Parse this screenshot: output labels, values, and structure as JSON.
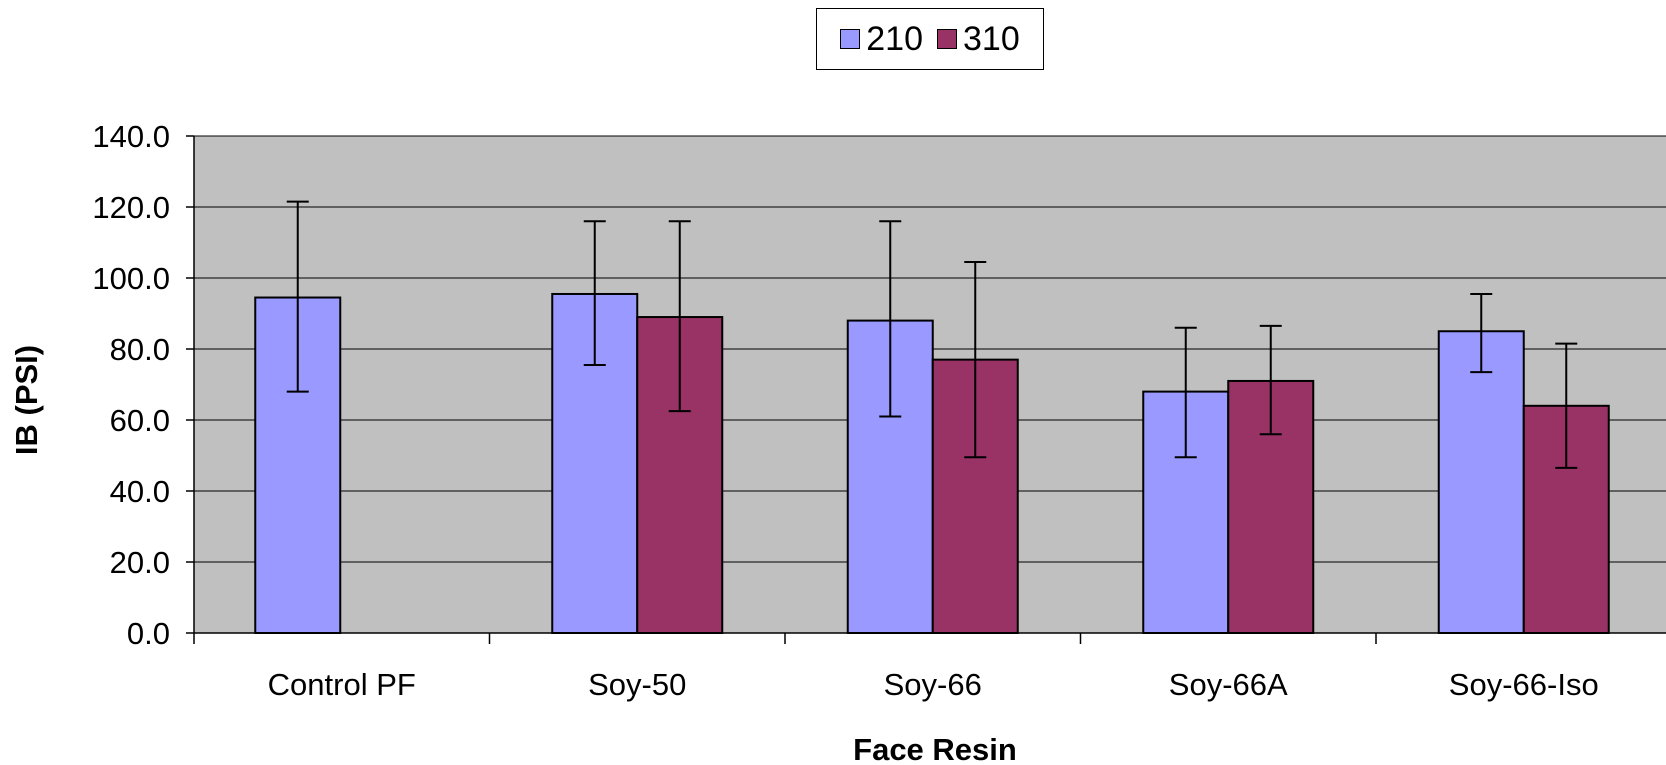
{
  "colors": {
    "series_210": "#9999ff",
    "series_310": "#993366",
    "plot_bg": "#c0c0c0",
    "grid": "#000000"
  },
  "legend": {
    "items": [
      {
        "label": "210"
      },
      {
        "label": "310"
      }
    ],
    "position": "top-center"
  },
  "chart_data": {
    "type": "bar",
    "title": "",
    "xlabel": "Face Resin",
    "ylabel": "IB (PSI)",
    "ylim": [
      0,
      140
    ],
    "yticks": [
      "0.0",
      "20.0",
      "40.0",
      "60.0",
      "80.0",
      "100.0",
      "120.0",
      "140.0"
    ],
    "grid": true,
    "categories": [
      "Control PF",
      "Soy-50",
      "Soy-66",
      "Soy-66A",
      "Soy-66-Iso"
    ],
    "series": [
      {
        "name": "210",
        "values": [
          94.5,
          95.5,
          88.0,
          68.0,
          85.0
        ],
        "error_low": [
          68.0,
          75.5,
          61.0,
          49.5,
          73.5
        ],
        "error_high": [
          121.5,
          116.0,
          116.0,
          86.0,
          95.5
        ]
      },
      {
        "name": "310",
        "values": [
          null,
          89.0,
          77.0,
          71.0,
          64.0
        ],
        "error_low": [
          null,
          62.5,
          49.5,
          56.0,
          46.5
        ],
        "error_high": [
          null,
          116.0,
          104.5,
          86.5,
          81.5
        ]
      }
    ]
  }
}
